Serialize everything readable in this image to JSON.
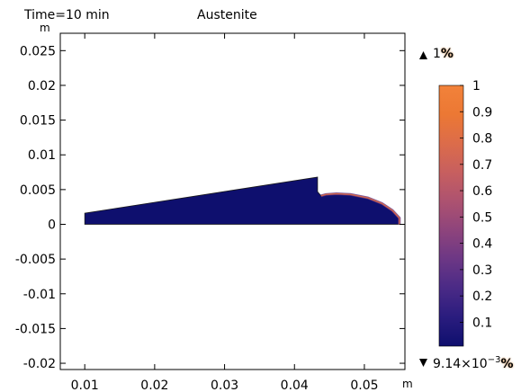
{
  "chart_data": {
    "type": "heatmap",
    "time_label": "Time=10 min",
    "title": "Austenite",
    "x_unit": "m",
    "y_unit": "m",
    "xlim": [
      0.0065,
      0.0558
    ],
    "ylim": [
      -0.0209,
      0.0275
    ],
    "x_ticks": [
      0.01,
      0.02,
      0.03,
      0.04,
      0.05
    ],
    "x_tick_labels": [
      "0.01",
      "0.02",
      "0.03",
      "0.04",
      "0.05"
    ],
    "y_ticks": [
      0.025,
      0.02,
      0.015,
      0.01,
      0.005,
      0,
      -0.005,
      -0.01,
      -0.015,
      -0.02
    ],
    "y_tick_labels": [
      "0.025",
      "0.02",
      "0.015",
      "0.01",
      "0.005",
      "0",
      "-0.005",
      "-0.01",
      "-0.015",
      "-0.02"
    ],
    "geometry": {
      "outline": [
        [
          0.01,
          0.0
        ],
        [
          0.055,
          0.0
        ],
        [
          0.055,
          0.0009
        ],
        [
          0.054,
          0.002
        ],
        [
          0.0525,
          0.003
        ],
        [
          0.0505,
          0.0038
        ],
        [
          0.048,
          0.0043
        ],
        [
          0.046,
          0.0044
        ],
        [
          0.0445,
          0.0043
        ],
        [
          0.0438,
          0.0041
        ],
        [
          0.0433,
          0.0047
        ],
        [
          0.0433,
          0.0068
        ],
        [
          0.01,
          0.0016
        ]
      ],
      "fill_value": 0.0,
      "edge_values": [
        0.3,
        0.6,
        0.9
      ]
    },
    "colorbar": {
      "min": 0.00914,
      "max": 1,
      "unit": "%",
      "max_label": "1",
      "max_unit": "%",
      "min_label_mantissa": "9.14×10",
      "min_label_exponent": "−3",
      "min_unit": "%",
      "ticks": [
        1,
        0.9,
        0.8,
        0.7,
        0.6,
        0.5,
        0.4,
        0.3,
        0.2,
        0.1
      ],
      "tick_labels": [
        "1",
        "0.9",
        "0.8",
        "0.7",
        "0.6",
        "0.5",
        "0.4",
        "0.3",
        "0.2",
        "0.1"
      ],
      "colors": [
        "#0e0f6e",
        "#2a1c7e",
        "#4a2a86",
        "#6c3785",
        "#8e447c",
        "#ad5270",
        "#c75f5f",
        "#dc6c4a",
        "#ec7834",
        "#f2823a"
      ]
    }
  }
}
